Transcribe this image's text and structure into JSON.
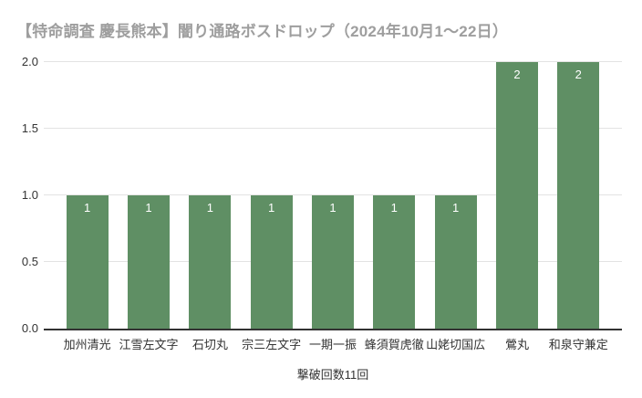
{
  "chart_data": {
    "type": "bar",
    "title": "【特命調査 慶長熊本】闇り通路ボスドロップ（2024年10月1～22日）",
    "categories": [
      "加州清光",
      "江雪左文字",
      "石切丸",
      "宗三左文字",
      "一期一振",
      "蜂須賀虎徹",
      "山姥切国広",
      "鶯丸",
      "和泉守兼定"
    ],
    "values": [
      1,
      1,
      1,
      1,
      1,
      1,
      1,
      2,
      2
    ],
    "bar_labels": [
      "1",
      "1",
      "1",
      "1",
      "1",
      "1",
      "1",
      "2",
      "2"
    ],
    "xlabel": "撃破回数11回",
    "ylabel": "",
    "ylim": [
      0,
      2
    ],
    "yticks": [
      0,
      0.5,
      1,
      1.5,
      2
    ],
    "ytick_labels": [
      "0.0",
      "0.5",
      "1.0",
      "1.5",
      "2.0"
    ],
    "grid": true,
    "legend": "none",
    "colors": {
      "bar": "#5f8f64",
      "bar_value_label": "#ffffff",
      "title": "#9e9e9e",
      "axis_label": "#333333",
      "gridline": "#e3e3e3",
      "baseline": "#333333",
      "background": "#ffffff"
    }
  }
}
